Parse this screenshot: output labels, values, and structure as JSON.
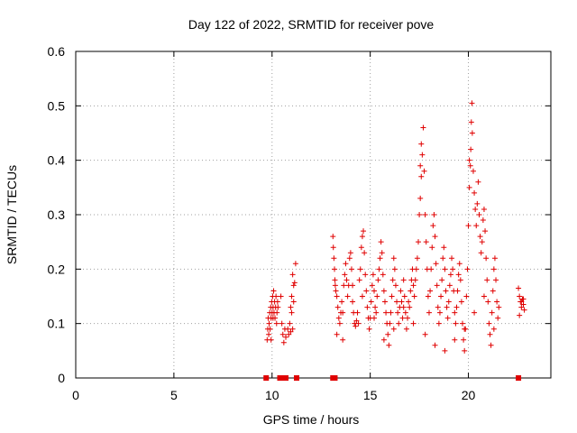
{
  "chart_data": {
    "type": "scatter",
    "title": "Day 122 of 2022, SRMTID for receiver pove",
    "xlabel": "GPS time / hours",
    "ylabel": "SRMTID / TECUs",
    "xlim": [
      0,
      24.2
    ],
    "ylim": [
      0,
      0.6
    ],
    "xticks": [
      0,
      5,
      10,
      15,
      20
    ],
    "xtick_labels": [
      "0",
      "5",
      "10",
      "15",
      "20"
    ],
    "yticks": [
      0,
      0.1,
      0.2,
      0.3,
      0.4,
      0.5,
      0.6
    ],
    "ytick_labels": [
      "0",
      "0.1",
      "0.2",
      "0.3",
      "0.4",
      "0.5",
      "0.6"
    ],
    "grid": true,
    "marker": "+",
    "color": "#e00000",
    "series": [
      {
        "name": "SRMTID",
        "points": [
          [
            9.75,
            0.07
          ],
          [
            9.78,
            0.09
          ],
          [
            9.8,
            0.11
          ],
          [
            9.83,
            0.08
          ],
          [
            9.85,
            0.1
          ],
          [
            9.88,
            0.12
          ],
          [
            9.9,
            0.09
          ],
          [
            9.93,
            0.13
          ],
          [
            9.95,
            0.11
          ],
          [
            9.98,
            0.14
          ],
          [
            10.0,
            0.12
          ],
          [
            10.03,
            0.15
          ],
          [
            10.05,
            0.13
          ],
          [
            10.08,
            0.16
          ],
          [
            10.1,
            0.12
          ],
          [
            10.13,
            0.14
          ],
          [
            10.15,
            0.11
          ],
          [
            10.18,
            0.13
          ],
          [
            10.2,
            0.15
          ],
          [
            10.23,
            0.1
          ],
          [
            10.25,
            0.12
          ],
          [
            10.28,
            0.14
          ],
          [
            10.3,
            0.13
          ],
          [
            10.05,
            0.11
          ],
          [
            9.95,
            0.07
          ],
          [
            10.45,
            0.15
          ],
          [
            10.5,
            0.1
          ],
          [
            10.55,
            0.08
          ],
          [
            10.6,
            0.065
          ],
          [
            10.65,
            0.09
          ],
          [
            10.7,
            0.075
          ],
          [
            10.8,
            0.09
          ],
          [
            10.85,
            0.08
          ],
          [
            10.9,
            0.1
          ],
          [
            10.95,
            0.085
          ],
          [
            11.0,
            0.12
          ],
          [
            11.05,
            0.09
          ],
          [
            11.1,
            0.14
          ],
          [
            11.15,
            0.175
          ],
          [
            11.2,
            0.21
          ],
          [
            11.05,
            0.19
          ],
          [
            11.1,
            0.17
          ],
          [
            10.95,
            0.13
          ],
          [
            11.0,
            0.15
          ],
          [
            13.1,
            0.26
          ],
          [
            13.12,
            0.24
          ],
          [
            13.15,
            0.22
          ],
          [
            13.18,
            0.2
          ],
          [
            13.2,
            0.18
          ],
          [
            13.22,
            0.17
          ],
          [
            13.25,
            0.16
          ],
          [
            13.3,
            0.15
          ],
          [
            13.35,
            0.13
          ],
          [
            13.4,
            0.11
          ],
          [
            13.45,
            0.1
          ],
          [
            13.5,
            0.12
          ],
          [
            13.55,
            0.14
          ],
          [
            13.6,
            0.12
          ],
          [
            13.65,
            0.17
          ],
          [
            13.7,
            0.19
          ],
          [
            13.75,
            0.21
          ],
          [
            13.8,
            0.18
          ],
          [
            13.85,
            0.15
          ],
          [
            13.9,
            0.17
          ],
          [
            13.95,
            0.22
          ],
          [
            14.0,
            0.23
          ],
          [
            14.05,
            0.2
          ],
          [
            14.1,
            0.14
          ],
          [
            14.15,
            0.12
          ],
          [
            14.2,
            0.1
          ],
          [
            14.25,
            0.095
          ],
          [
            14.3,
            0.105
          ],
          [
            14.35,
            0.12
          ],
          [
            14.4,
            0.1
          ],
          [
            14.45,
            0.18
          ],
          [
            14.5,
            0.2
          ],
          [
            14.55,
            0.24
          ],
          [
            14.6,
            0.26
          ],
          [
            14.65,
            0.27
          ],
          [
            14.7,
            0.23
          ],
          [
            14.75,
            0.19
          ],
          [
            14.8,
            0.16
          ],
          [
            14.85,
            0.13
          ],
          [
            14.9,
            0.11
          ],
          [
            14.95,
            0.09
          ],
          [
            15.0,
            0.11
          ],
          [
            15.05,
            0.14
          ],
          [
            15.1,
            0.17
          ],
          [
            15.15,
            0.19
          ],
          [
            15.2,
            0.16
          ],
          [
            15.25,
            0.13
          ],
          [
            15.3,
            0.12
          ],
          [
            15.35,
            0.15
          ],
          [
            15.4,
            0.18
          ],
          [
            15.45,
            0.2
          ],
          [
            15.5,
            0.22
          ],
          [
            15.55,
            0.25
          ],
          [
            15.6,
            0.23
          ],
          [
            15.65,
            0.19
          ],
          [
            15.7,
            0.16
          ],
          [
            15.75,
            0.14
          ],
          [
            15.8,
            0.12
          ],
          [
            15.85,
            0.1
          ],
          [
            15.9,
            0.08
          ],
          [
            15.95,
            0.06
          ],
          [
            16.0,
            0.1
          ],
          [
            16.05,
            0.12
          ],
          [
            16.1,
            0.15
          ],
          [
            16.15,
            0.18
          ],
          [
            16.2,
            0.22
          ],
          [
            16.25,
            0.2
          ],
          [
            16.3,
            0.17
          ],
          [
            16.35,
            0.14
          ],
          [
            16.4,
            0.12
          ],
          [
            16.45,
            0.1
          ],
          [
            16.5,
            0.13
          ],
          [
            16.55,
            0.16
          ],
          [
            16.6,
            0.14
          ],
          [
            16.65,
            0.11
          ],
          [
            16.7,
            0.13
          ],
          [
            16.75,
            0.15
          ],
          [
            16.8,
            0.12
          ],
          [
            16.85,
            0.09
          ],
          [
            16.9,
            0.11
          ],
          [
            16.95,
            0.14
          ],
          [
            17.0,
            0.13
          ],
          [
            17.05,
            0.16
          ],
          [
            17.1,
            0.18
          ],
          [
            17.15,
            0.2
          ],
          [
            17.2,
            0.17
          ],
          [
            17.25,
            0.15
          ],
          [
            17.3,
            0.18
          ],
          [
            17.35,
            0.2
          ],
          [
            17.4,
            0.22
          ],
          [
            17.45,
            0.25
          ],
          [
            17.5,
            0.3
          ],
          [
            17.55,
            0.33
          ],
          [
            17.6,
            0.37
          ],
          [
            17.65,
            0.41
          ],
          [
            17.7,
            0.46
          ],
          [
            17.75,
            0.38
          ],
          [
            17.8,
            0.3
          ],
          [
            17.85,
            0.25
          ],
          [
            17.9,
            0.2
          ],
          [
            17.95,
            0.15
          ],
          [
            18.0,
            0.12
          ],
          [
            18.05,
            0.16
          ],
          [
            18.1,
            0.2
          ],
          [
            18.15,
            0.24
          ],
          [
            18.2,
            0.28
          ],
          [
            18.25,
            0.3
          ],
          [
            18.3,
            0.26
          ],
          [
            18.35,
            0.21
          ],
          [
            18.4,
            0.17
          ],
          [
            18.45,
            0.13
          ],
          [
            18.5,
            0.1
          ],
          [
            18.55,
            0.12
          ],
          [
            18.6,
            0.15
          ],
          [
            18.65,
            0.18
          ],
          [
            18.7,
            0.22
          ],
          [
            18.75,
            0.24
          ],
          [
            18.8,
            0.2
          ],
          [
            18.85,
            0.16
          ],
          [
            18.9,
            0.13
          ],
          [
            18.95,
            0.11
          ],
          [
            19.0,
            0.14
          ],
          [
            19.05,
            0.17
          ],
          [
            19.1,
            0.19
          ],
          [
            19.15,
            0.22
          ],
          [
            19.2,
            0.2
          ],
          [
            19.25,
            0.16
          ],
          [
            19.3,
            0.12
          ],
          [
            19.35,
            0.1
          ],
          [
            19.4,
            0.13
          ],
          [
            19.45,
            0.16
          ],
          [
            19.5,
            0.19
          ],
          [
            19.55,
            0.21
          ],
          [
            19.6,
            0.18
          ],
          [
            19.65,
            0.14
          ],
          [
            19.7,
            0.1
          ],
          [
            19.75,
            0.07
          ],
          [
            19.8,
            0.05
          ],
          [
            19.85,
            0.09
          ],
          [
            19.9,
            0.15
          ],
          [
            19.95,
            0.2
          ],
          [
            20.0,
            0.28
          ],
          [
            20.05,
            0.35
          ],
          [
            20.1,
            0.39
          ],
          [
            20.12,
            0.42
          ],
          [
            20.15,
            0.47
          ],
          [
            20.18,
            0.505
          ],
          [
            20.2,
            0.45
          ],
          [
            20.25,
            0.38
          ],
          [
            20.3,
            0.34
          ],
          [
            20.35,
            0.31
          ],
          [
            20.4,
            0.28
          ],
          [
            20.45,
            0.32
          ],
          [
            20.5,
            0.36
          ],
          [
            20.55,
            0.3
          ],
          [
            20.6,
            0.26
          ],
          [
            20.65,
            0.23
          ],
          [
            20.7,
            0.25
          ],
          [
            20.75,
            0.29
          ],
          [
            20.8,
            0.31
          ],
          [
            20.85,
            0.27
          ],
          [
            20.9,
            0.22
          ],
          [
            20.95,
            0.18
          ],
          [
            21.0,
            0.14
          ],
          [
            21.05,
            0.1
          ],
          [
            21.1,
            0.08
          ],
          [
            21.15,
            0.06
          ],
          [
            21.2,
            0.12
          ],
          [
            21.25,
            0.16
          ],
          [
            21.3,
            0.2
          ],
          [
            21.35,
            0.22
          ],
          [
            21.4,
            0.18
          ],
          [
            21.45,
            0.14
          ],
          [
            21.5,
            0.11
          ],
          [
            21.55,
            0.13
          ],
          [
            13.3,
            0.08
          ],
          [
            13.6,
            0.07
          ],
          [
            14.1,
            0.17
          ],
          [
            14.6,
            0.15
          ],
          [
            15.2,
            0.11
          ],
          [
            15.7,
            0.07
          ],
          [
            16.2,
            0.09
          ],
          [
            16.7,
            0.18
          ],
          [
            17.2,
            0.1
          ],
          [
            17.8,
            0.08
          ],
          [
            18.3,
            0.06
          ],
          [
            18.8,
            0.05
          ],
          [
            19.3,
            0.07
          ],
          [
            19.8,
            0.09
          ],
          [
            20.3,
            0.12
          ],
          [
            20.8,
            0.15
          ],
          [
            21.3,
            0.09
          ],
          [
            17.6,
            0.43
          ],
          [
            17.55,
            0.39
          ],
          [
            20.05,
            0.4
          ],
          [
            22.55,
            0.165
          ],
          [
            22.6,
            0.15
          ],
          [
            22.65,
            0.14
          ],
          [
            22.7,
            0.13
          ],
          [
            22.75,
            0.145
          ],
          [
            22.8,
            0.135
          ],
          [
            22.85,
            0.125
          ],
          [
            22.6,
            0.115
          ],
          [
            22.7,
            0.14
          ],
          [
            22.8,
            0.145
          ]
        ]
      }
    ],
    "zero_markers_x": [
      9.7,
      10.4,
      10.55,
      10.7,
      11.25,
      13.1,
      13.2,
      22.55
    ]
  }
}
